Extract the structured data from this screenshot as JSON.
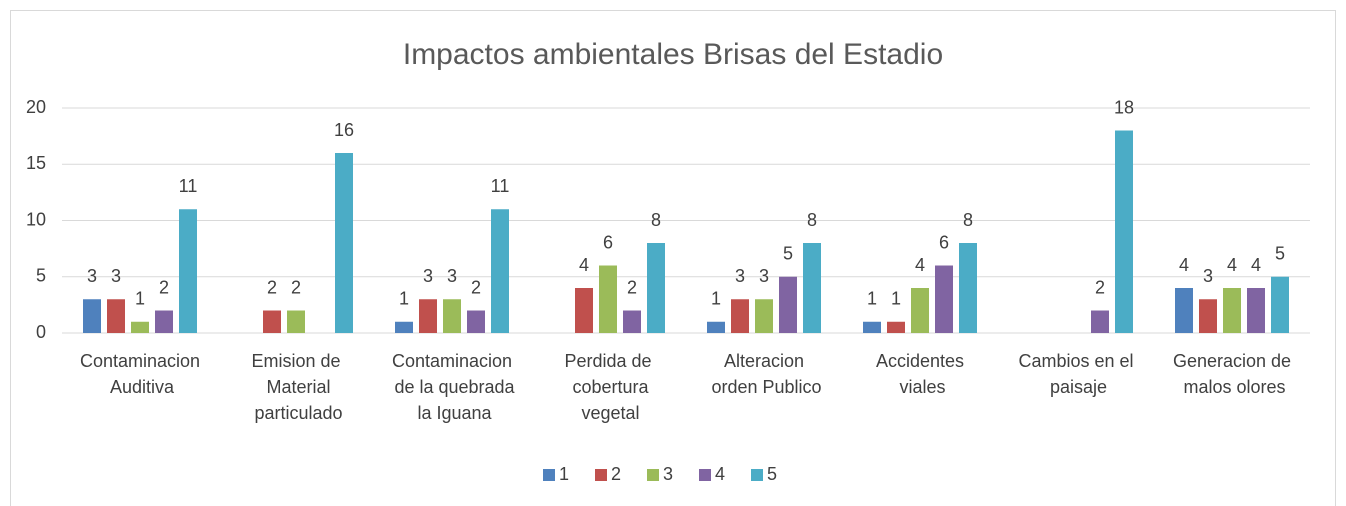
{
  "chart_data": {
    "type": "bar",
    "title": "Impactos ambientales Brisas del Estadio",
    "categories": [
      "Contaminacion Auditiva",
      "Emision de Material particulado",
      "Contaminacion de la quebrada la Iguana",
      "Perdida de cobertura vegetal",
      "Alteracion orden Publico",
      "Accidentes viales",
      "Cambios en el paisaje",
      "Generacion de malos olores"
    ],
    "series": [
      {
        "name": "1",
        "color": "#4f81bd",
        "values": [
          3,
          null,
          1,
          null,
          1,
          1,
          null,
          4
        ]
      },
      {
        "name": "2",
        "color": "#c0504d",
        "values": [
          3,
          2,
          3,
          4,
          3,
          1,
          null,
          3
        ]
      },
      {
        "name": "3",
        "color": "#9bbb59",
        "values": [
          1,
          2,
          3,
          6,
          3,
          4,
          null,
          4
        ]
      },
      {
        "name": "4",
        "color": "#8064a2",
        "values": [
          2,
          null,
          2,
          2,
          5,
          6,
          2,
          4
        ]
      },
      {
        "name": "5",
        "color": "#4bacc6",
        "values": [
          11,
          16,
          11,
          8,
          8,
          8,
          18,
          5
        ]
      }
    ],
    "ylim": [
      0,
      20
    ],
    "yticks": [
      0,
      5,
      10,
      15,
      20
    ],
    "grid": true,
    "legend": "bottom"
  }
}
